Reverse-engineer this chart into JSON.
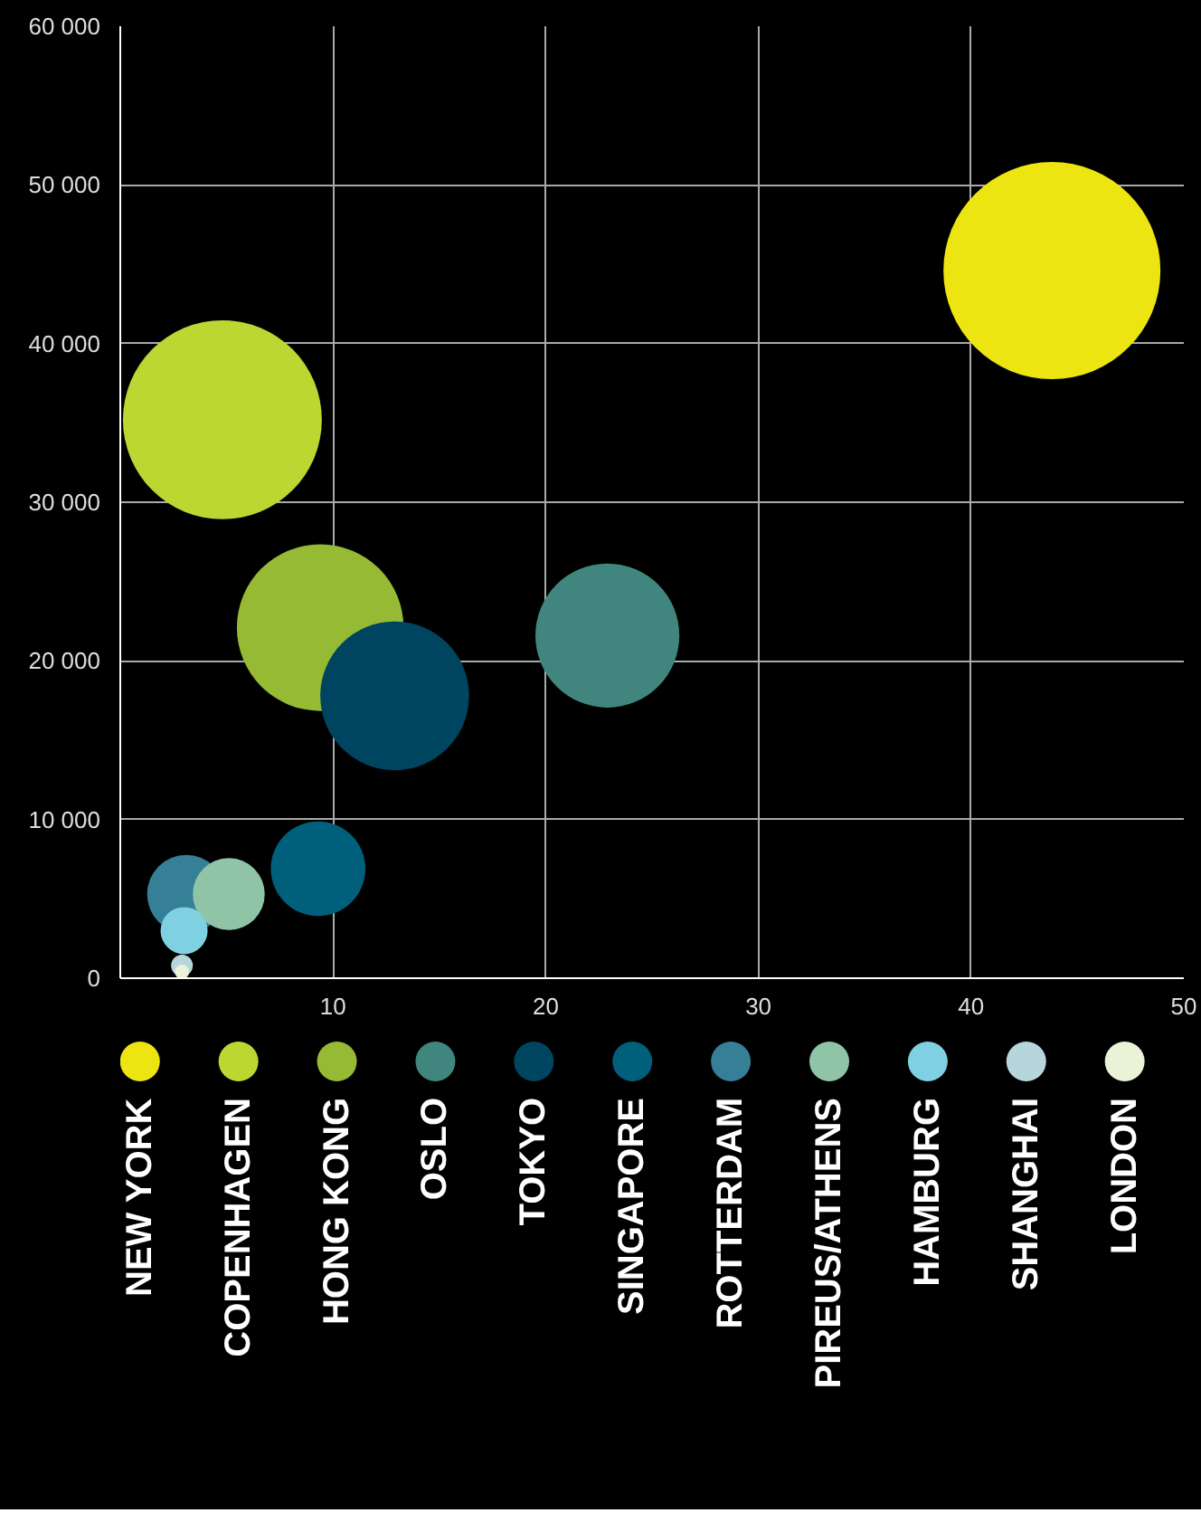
{
  "chart_data": {
    "type": "bubble",
    "xlim": [
      0,
      50
    ],
    "xticks": [
      10,
      20,
      30,
      40,
      50
    ],
    "ylim": [
      0,
      60000
    ],
    "yticks": [
      0,
      {
        "value": 10000,
        "label": "10 000"
      },
      {
        "value": 20000,
        "label": "20 000"
      },
      {
        "value": 30000,
        "label": "30 000"
      },
      {
        "value": 40000,
        "label": "40 000"
      },
      {
        "value": 50000,
        "label": "50 000"
      },
      {
        "value": 60000,
        "label": "60 000"
      }
    ],
    "grid": true,
    "legend": "bottom",
    "series": [
      {
        "name": "NEW YORK",
        "color": "#ece512",
        "x": [
          43.8
        ],
        "values": [
          44600
        ],
        "sizes": [
          1
        ]
      },
      {
        "name": "COPENHAGEN",
        "color": "#bcd632",
        "x": [
          4.8
        ],
        "values": [
          35200
        ],
        "sizes": [
          0.84
        ]
      },
      {
        "name": "HONG KONG",
        "color": "#96ba34",
        "x": [
          9.4
        ],
        "values": [
          22100
        ],
        "sizes": [
          0.59
        ]
      },
      {
        "name": "OSLO",
        "color": "#41867e",
        "x": [
          22.9
        ],
        "values": [
          21600
        ],
        "sizes": [
          0.44
        ]
      },
      {
        "name": "TOKYO",
        "color": "#004560",
        "x": [
          12.9
        ],
        "values": [
          17800
        ],
        "sizes": [
          0.47
        ]
      },
      {
        "name": "SINGAPORE",
        "color": "#005f7a",
        "x": [
          9.3
        ],
        "values": [
          6900
        ],
        "sizes": [
          0.19
        ]
      },
      {
        "name": "ROTTERDAM",
        "color": "#357f97",
        "x": [
          3.1
        ],
        "values": [
          5300
        ],
        "sizes": [
          0.13
        ]
      },
      {
        "name": "PIREUS/ATHENS",
        "color": "#8fc5a6",
        "x": [
          5.1
        ],
        "values": [
          5300
        ],
        "sizes": [
          0.11
        ]
      },
      {
        "name": "HAMBURG",
        "color": "#7fd0e0",
        "x": [
          3.0
        ],
        "values": [
          3000
        ],
        "sizes": [
          0.047
        ]
      },
      {
        "name": "SHANGHAI",
        "color": "#b7d6db",
        "x": [
          2.9
        ],
        "values": [
          800
        ],
        "sizes": [
          0.01
        ]
      },
      {
        "name": "LONDON",
        "color": "#eaf2d8",
        "x": [
          2.9
        ],
        "values": [
          400
        ],
        "sizes": [
          0.0044
        ]
      }
    ]
  }
}
